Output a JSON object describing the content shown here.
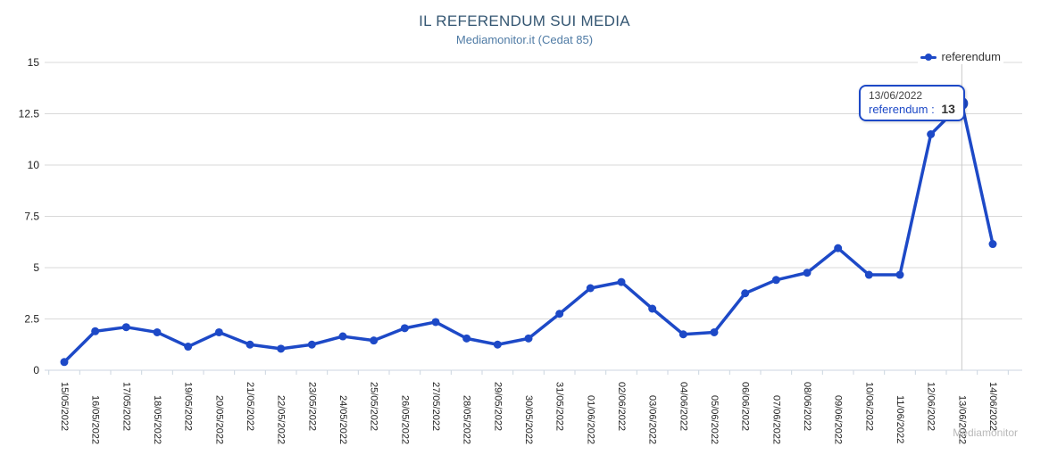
{
  "title": "IL REFERENDUM SUI MEDIA",
  "subtitle": "Mediamonitor.it (Cedat 85)",
  "legend": {
    "label": "referendum"
  },
  "tooltip": {
    "date": "13/06/2022",
    "series_label": "referendum :",
    "value": "13"
  },
  "watermark": "Mediamonitor",
  "colors": {
    "series": "#1d49c7",
    "grid": "#d9d9d9",
    "axis": "#ccd6e0",
    "crosshair": "#c8c8c8",
    "axis_label": "#222222",
    "title": "#345672",
    "subtitle": "#4f7ba5"
  },
  "chart_data": {
    "type": "line",
    "title": "IL REFERENDUM SUI MEDIA",
    "subtitle": "Mediamonitor.it (Cedat 85)",
    "legend_position": "top-right",
    "grid": true,
    "xlabel": "",
    "ylabel": "",
    "ylim": [
      0,
      15
    ],
    "yticks": [
      0,
      2.5,
      5,
      7.5,
      10,
      12.5,
      15
    ],
    "ytick_labels": [
      "0",
      "2.5",
      "5",
      "7.5",
      "10",
      "12.5",
      "15"
    ],
    "categories": [
      "15/05/2022",
      "16/05/2022",
      "17/05/2022",
      "18/05/2022",
      "19/05/2022",
      "20/05/2022",
      "21/05/2022",
      "22/05/2022",
      "23/05/2022",
      "24/05/2022",
      "25/05/2022",
      "26/05/2022",
      "27/05/2022",
      "28/05/2022",
      "29/05/2022",
      "30/05/2022",
      "31/05/2022",
      "01/06/2022",
      "02/06/2022",
      "03/06/2022",
      "04/06/2022",
      "05/06/2022",
      "06/06/2022",
      "07/06/2022",
      "08/06/2022",
      "09/06/2022",
      "10/06/2022",
      "11/06/2022",
      "12/06/2022",
      "13/06/2022",
      "14/06/2022"
    ],
    "series": [
      {
        "name": "referendum",
        "values": [
          0.4,
          1.9,
          2.1,
          1.85,
          1.15,
          1.85,
          1.25,
          1.05,
          1.25,
          1.65,
          1.45,
          2.05,
          2.35,
          1.55,
          1.25,
          1.55,
          2.75,
          4.0,
          4.3,
          3.0,
          1.75,
          1.85,
          3.75,
          4.4,
          4.75,
          5.95,
          4.65,
          4.65,
          11.5,
          13,
          6.15
        ]
      }
    ],
    "highlight_index": 29,
    "crosshair_index": 29
  }
}
